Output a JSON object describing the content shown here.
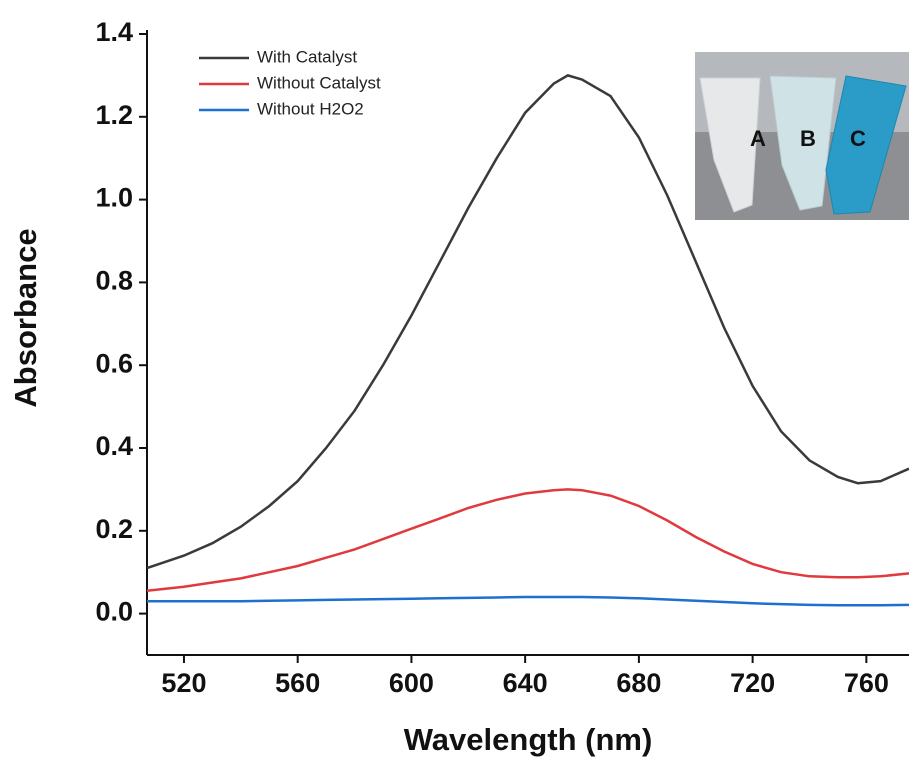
{
  "chart_data": {
    "type": "line",
    "xlabel": "Wavelength (nm)",
    "ylabel": "Absorbance",
    "x": [
      507,
      520,
      530,
      540,
      550,
      560,
      570,
      580,
      590,
      600,
      610,
      620,
      630,
      640,
      650,
      655,
      660,
      670,
      680,
      690,
      700,
      710,
      720,
      730,
      740,
      750,
      757,
      765,
      775
    ],
    "series": [
      {
        "name": "With Catalyst",
        "color": "#3a3a3a",
        "values": [
          0.11,
          0.14,
          0.17,
          0.21,
          0.26,
          0.32,
          0.4,
          0.49,
          0.6,
          0.72,
          0.85,
          0.98,
          1.1,
          1.21,
          1.28,
          1.3,
          1.29,
          1.25,
          1.15,
          1.01,
          0.85,
          0.69,
          0.55,
          0.44,
          0.37,
          0.33,
          0.315,
          0.32,
          0.35
        ]
      },
      {
        "name": "Without Catalyst",
        "color": "#e03a3e",
        "values": [
          0.055,
          0.065,
          0.075,
          0.085,
          0.1,
          0.115,
          0.135,
          0.155,
          0.18,
          0.205,
          0.23,
          0.255,
          0.275,
          0.29,
          0.298,
          0.3,
          0.298,
          0.285,
          0.26,
          0.225,
          0.185,
          0.15,
          0.12,
          0.1,
          0.09,
          0.088,
          0.088,
          0.09,
          0.097
        ]
      },
      {
        "name": "Without H2O2",
        "color": "#1f6fd1",
        "values": [
          0.03,
          0.03,
          0.03,
          0.03,
          0.031,
          0.032,
          0.033,
          0.034,
          0.035,
          0.036,
          0.037,
          0.038,
          0.039,
          0.04,
          0.04,
          0.04,
          0.04,
          0.039,
          0.037,
          0.034,
          0.031,
          0.028,
          0.025,
          0.023,
          0.021,
          0.02,
          0.02,
          0.02,
          0.021
        ]
      }
    ],
    "xlim": [
      507,
      775
    ],
    "xticks": [
      520,
      560,
      600,
      640,
      680,
      720,
      760
    ],
    "ylim": [
      -0.1,
      1.4
    ],
    "yticks": [
      {
        "value": 0,
        "label": "0.0"
      },
      0.2,
      0.4,
      0.6,
      0.8,
      {
        "value": 1,
        "label": "1.0"
      },
      1.2,
      1.4
    ],
    "grid": false,
    "legend": "upper left",
    "inset_labels": [
      "A",
      "B",
      "C"
    ]
  }
}
